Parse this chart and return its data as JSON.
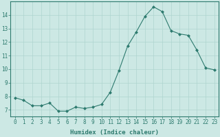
{
  "x": [
    0,
    1,
    2,
    3,
    4,
    5,
    6,
    7,
    8,
    9,
    10,
    11,
    12,
    13,
    14,
    15,
    16,
    17,
    18,
    19,
    20,
    21,
    22,
    23
  ],
  "y": [
    7.9,
    7.7,
    7.3,
    7.3,
    7.5,
    6.9,
    6.9,
    7.2,
    7.1,
    7.2,
    7.4,
    8.3,
    9.9,
    11.7,
    12.75,
    13.9,
    14.6,
    14.25,
    12.85,
    12.6,
    12.5,
    11.4,
    10.1,
    9.95
  ],
  "line_color": "#2d7a6e",
  "marker": "D",
  "marker_size": 2,
  "bg_color": "#cce8e4",
  "grid_color": "#aed4cf",
  "xlabel": "Humidex (Indice chaleur)",
  "xlim": [
    -0.5,
    23.5
  ],
  "ylim": [
    6.5,
    15.0
  ],
  "yticks": [
    7,
    8,
    9,
    10,
    11,
    12,
    13,
    14
  ],
  "xtick_labels": [
    "0",
    "1",
    "2",
    "3",
    "4",
    "5",
    "6",
    "7",
    "8",
    "9",
    "10",
    "11",
    "12",
    "13",
    "14",
    "15",
    "16",
    "17",
    "18",
    "19",
    "20",
    "21",
    "22",
    "23"
  ],
  "xlabel_fontsize": 6.5,
  "tick_fontsize": 5.5,
  "axis_color": "#2d7a6e",
  "linewidth": 0.8
}
